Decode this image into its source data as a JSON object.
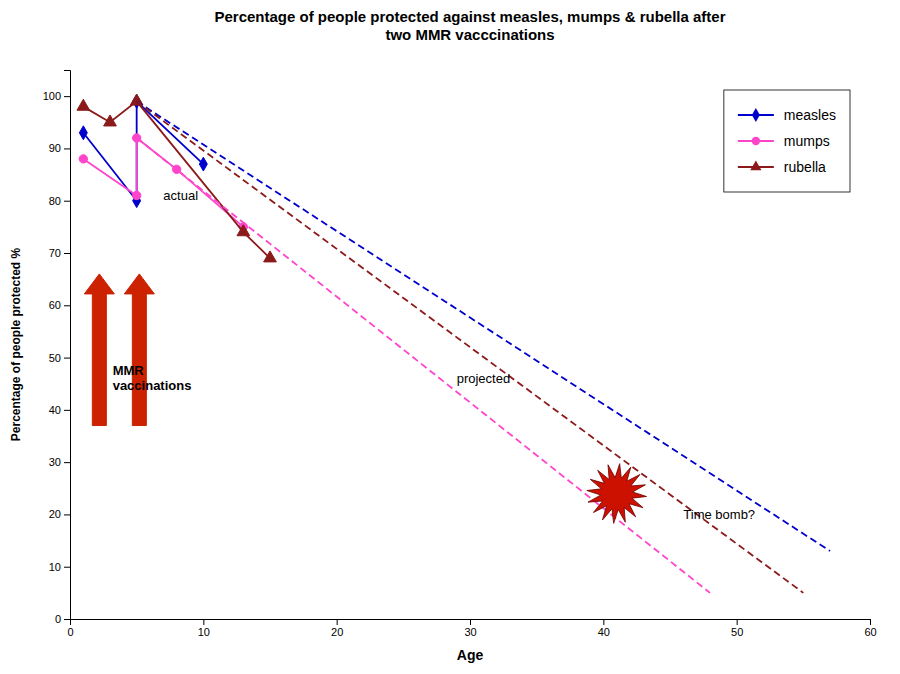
{
  "chart_data": {
    "type": "line",
    "title": "Percentage of people protected against measles, mumps & rubella after\ntwo MMR vacccinations",
    "xlabel": "Age",
    "ylabel": "Percentage of people protected %",
    "xlim": [
      0,
      60
    ],
    "ylim": [
      0,
      105
    ],
    "xticks": [
      0,
      10,
      20,
      30,
      40,
      50,
      60
    ],
    "yticks": [
      0,
      10,
      20,
      30,
      40,
      50,
      60,
      70,
      80,
      90,
      100
    ],
    "grid": false,
    "legend": "upper right",
    "series": [
      {
        "name": "measles",
        "color": "#0000cc",
        "marker": "diamond",
        "line_style": "solid",
        "x": [
          1,
          5,
          5,
          10
        ],
        "values": [
          93,
          80,
          99,
          87
        ]
      },
      {
        "name": "mumps",
        "color": "#ff44cc",
        "marker": "circle",
        "line_style": "solid",
        "x": [
          1,
          5,
          5,
          8,
          13
        ],
        "values": [
          88,
          81,
          92,
          86,
          75
        ]
      },
      {
        "name": "rubella",
        "color": "#8b1a1a",
        "marker": "triangle",
        "line_style": "solid",
        "x": [
          1,
          3,
          5,
          13,
          15
        ],
        "values": [
          98,
          95,
          99,
          74,
          69
        ]
      },
      {
        "color": "#0000cc",
        "line_style": "dashed",
        "x": [
          5,
          57
        ],
        "values": [
          99,
          13
        ]
      },
      {
        "color": "#ff44cc",
        "line_style": "dashed",
        "x": [
          5,
          48
        ],
        "values": [
          92,
          5
        ]
      },
      {
        "color": "#8b1a1a",
        "line_style": "dashed",
        "x": [
          5,
          55
        ],
        "values": [
          99,
          5
        ]
      }
    ],
    "arrows": [
      {
        "x": 2.2,
        "y_start": 37,
        "y_end": 66,
        "color": "#cc2200"
      },
      {
        "x": 5.2,
        "y_start": 37,
        "y_end": 66,
        "color": "#cc2200"
      }
    ],
    "burst": {
      "x": 41,
      "y": 24,
      "color": "#cc1100",
      "edge_color": "#6b0000"
    },
    "annotations": [
      {
        "text": "actual",
        "x": 7.0,
        "y": 81
      },
      {
        "text": "MMR\nvaccinations",
        "x": 3.2,
        "y": 49
      },
      {
        "text": "projected",
        "x": 29,
        "y": 46
      },
      {
        "text": "Time bomb?",
        "x": 46,
        "y": 20
      }
    ]
  }
}
